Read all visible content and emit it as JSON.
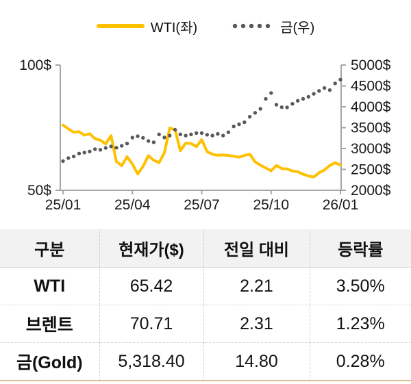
{
  "chart_data": {
    "type": "line",
    "title": "",
    "x_ticks": [
      "25/01",
      "25/04",
      "25/07",
      "25/10",
      "26/01"
    ],
    "left_axis": {
      "ticks": [
        "100$",
        "50$"
      ],
      "min": 50,
      "max": 100,
      "unit": "$"
    },
    "right_axis": {
      "ticks": [
        "5000$",
        "4500$",
        "4000$",
        "3500$",
        "3000$",
        "2500$",
        "2000$"
      ],
      "min": 2000,
      "max": 5000,
      "unit": "$"
    },
    "legend_position": "top",
    "grid": false,
    "axis_color": "#a6a6a6",
    "series": [
      {
        "name": "WTI(좌)",
        "axis": "left",
        "style": "solid",
        "color": "#FFC000",
        "values": [
          76,
          74.5,
          73.2,
          73.4,
          72,
          72.6,
          70.6,
          70,
          68.5,
          71.8,
          61.5,
          59.8,
          63.4,
          60.5,
          56.5,
          59.5,
          63.8,
          62,
          61,
          65,
          74.8,
          74.2,
          65.8,
          68.8,
          68.7,
          67.4,
          70.2,
          65.4,
          64.4,
          64,
          64.1,
          63.9,
          63.6,
          63.2,
          63.9,
          64.4,
          61.4,
          60,
          58.9,
          57.8,
          59.9,
          58.7,
          58.5,
          57.7,
          57.4,
          56.4,
          55.7,
          55.3,
          57,
          58.1,
          59.9,
          61,
          60.1
        ]
      },
      {
        "name": "금(우)",
        "axis": "right",
        "style": "dotted",
        "color": "#595959",
        "values": [
          2700,
          2770,
          2810,
          2880,
          2905,
          2930,
          2985,
          2970,
          3015,
          3050,
          3020,
          3065,
          3120,
          3260,
          3295,
          3255,
          3180,
          3150,
          3340,
          3265,
          3310,
          3450,
          3340,
          3310,
          3340,
          3370,
          3370,
          3330,
          3310,
          3350,
          3310,
          3390,
          3530,
          3580,
          3630,
          3760,
          3855,
          3950,
          4190,
          4330,
          4050,
          3990,
          3985,
          4070,
          4145,
          4190,
          4240,
          4310,
          4380,
          4450,
          4400,
          4560,
          4650
        ]
      }
    ]
  },
  "table": {
    "headers": [
      "구분",
      "현재가($)",
      "전일 대비",
      "등락률"
    ],
    "rows": [
      {
        "label": "WTI",
        "price": "65.42",
        "change": "2.21",
        "pct": "3.50%"
      },
      {
        "label": "브렌트",
        "price": "70.71",
        "change": "2.31",
        "pct": "1.23%"
      },
      {
        "label": "금(Gold)",
        "price": "5,318.40",
        "change": "14.80",
        "pct": "0.28%"
      }
    ],
    "accent_border_color": "#d9bd8e"
  }
}
